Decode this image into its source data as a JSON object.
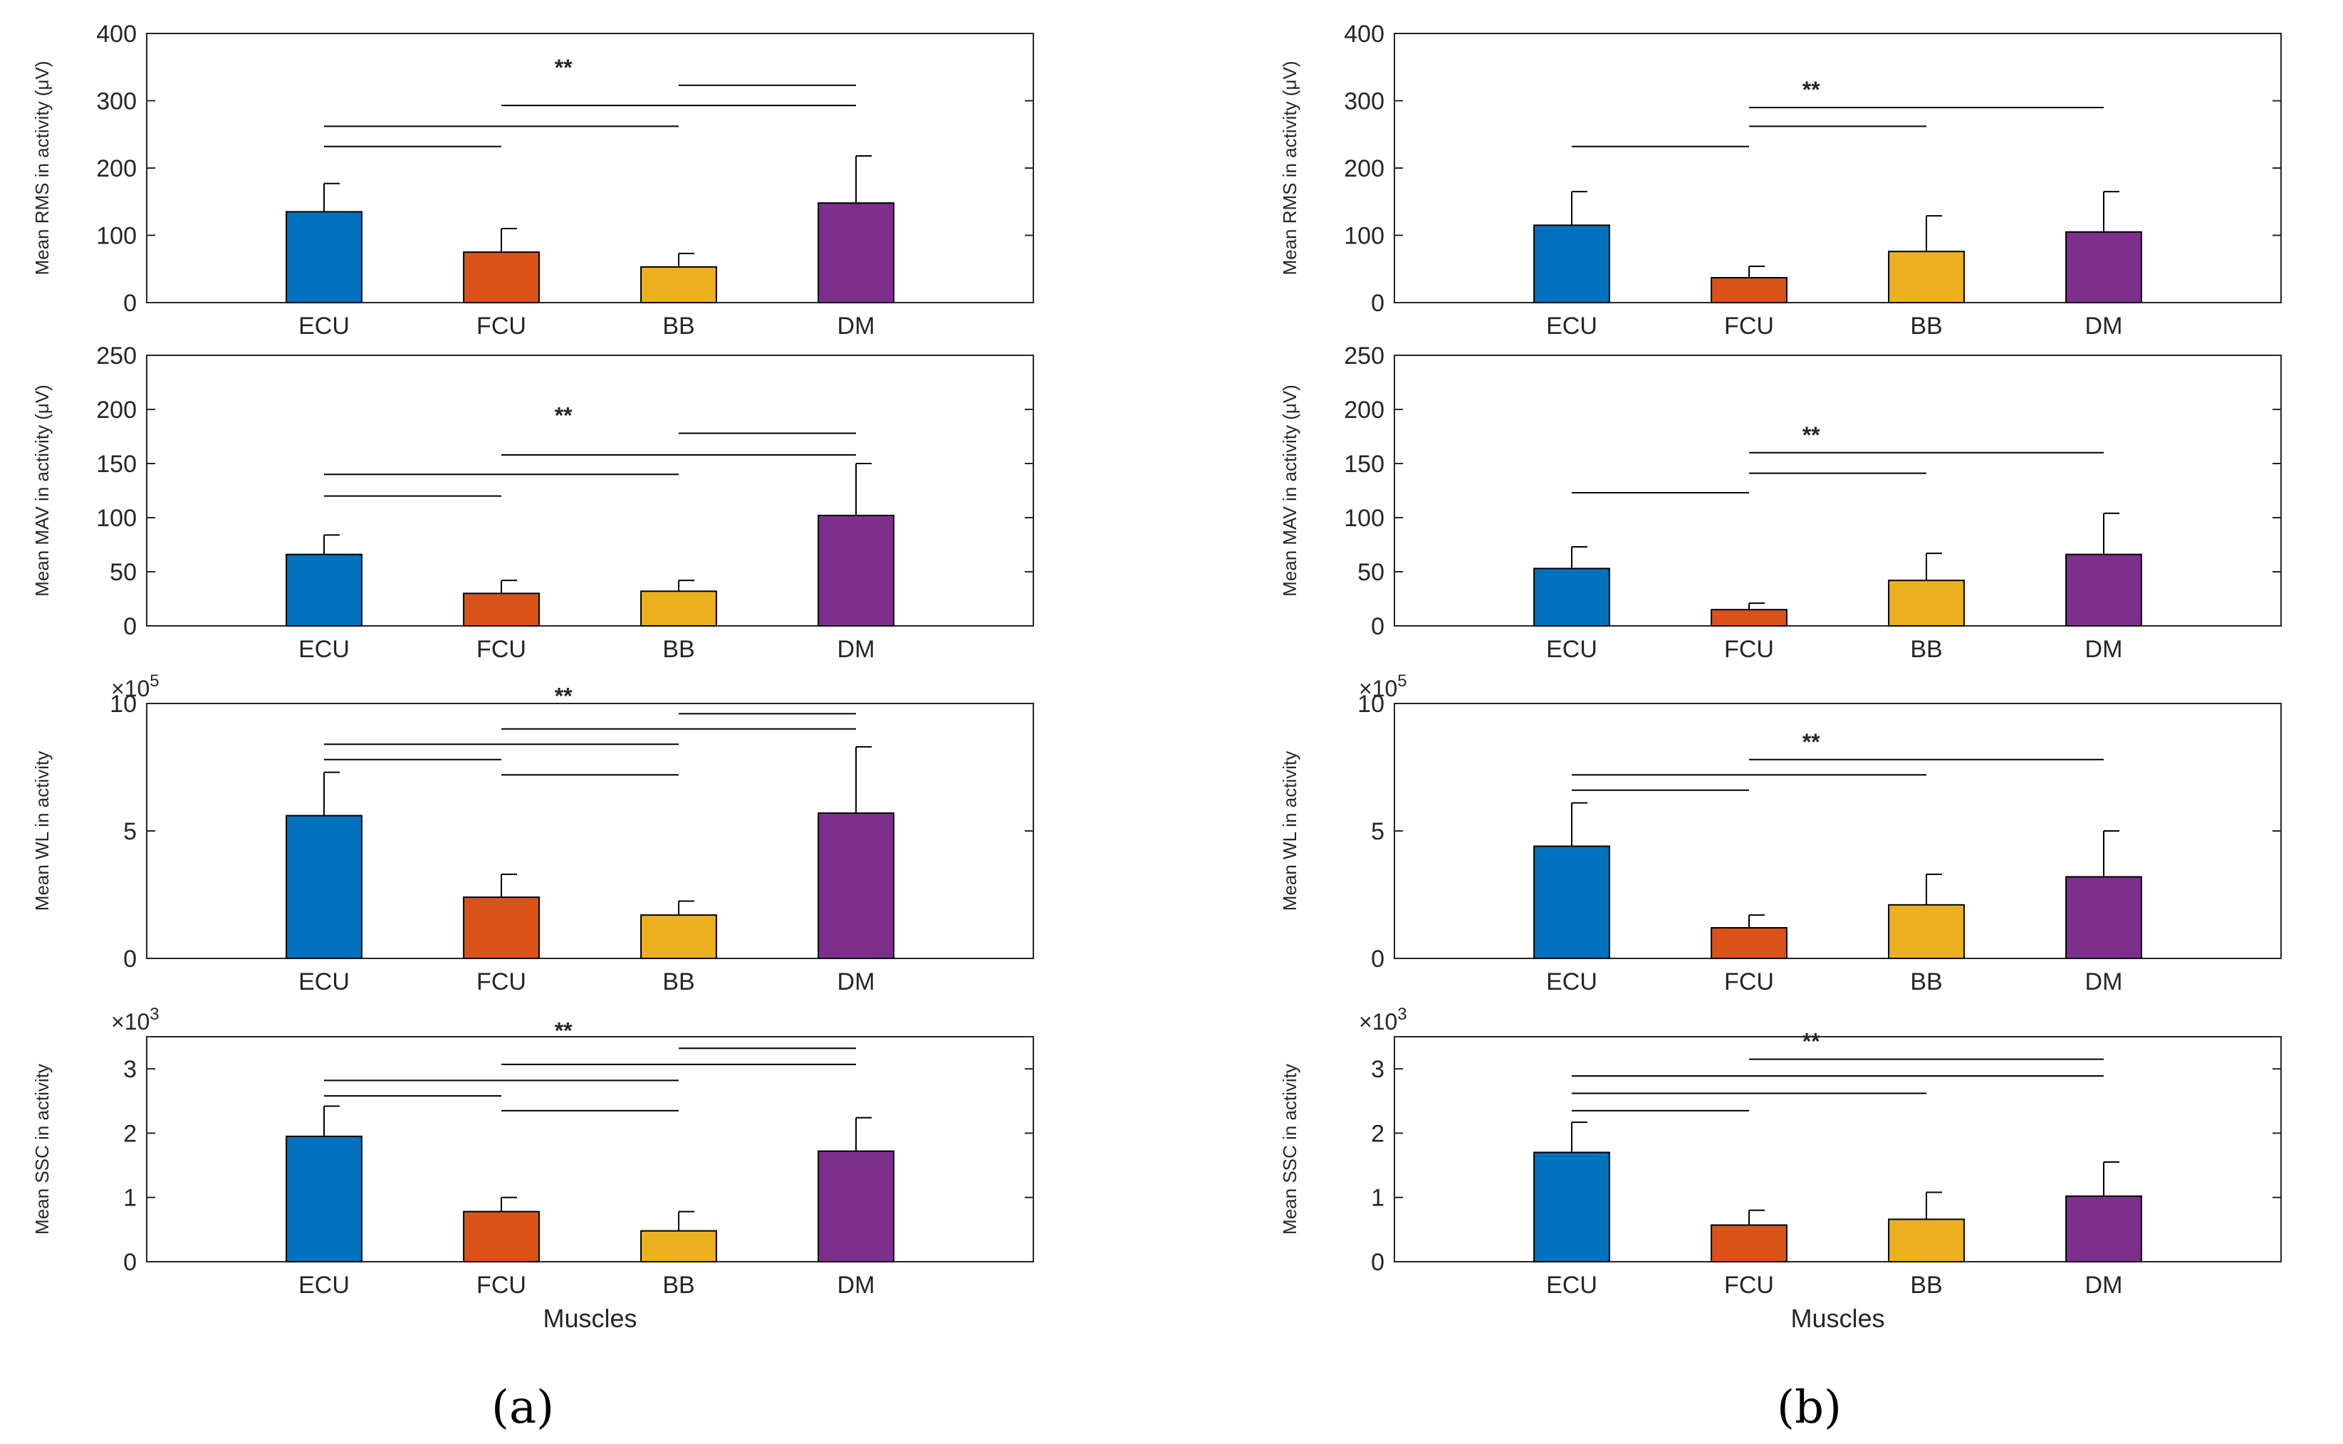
{
  "panel_labels": [
    "(a)",
    "(b)"
  ],
  "colors": {
    "ECU": "#0072BD",
    "FCU": "#D95319",
    "BB": "#EDB120",
    "DM": "#7E2F8E"
  },
  "chart_data": [
    {
      "type": "bar",
      "panel": "(a)",
      "title": "",
      "ylabel": "Mean RMS in activity (μV)",
      "xlabel": "",
      "categories": [
        "ECU",
        "FCU",
        "BB",
        "DM"
      ],
      "values": [
        135,
        75,
        53,
        148
      ],
      "errors": [
        42,
        35,
        20,
        70
      ],
      "ylim": [
        0,
        400
      ],
      "yticks": [
        0,
        100,
        200,
        300,
        400
      ],
      "ytick_labels": [
        "0",
        "100",
        "200",
        "300",
        "400"
      ],
      "exponent": "",
      "significance": "**",
      "brackets": [
        [
          0,
          1,
          232
        ],
        [
          0,
          2,
          262
        ],
        [
          1,
          3,
          293
        ],
        [
          2,
          3,
          323
        ]
      ]
    },
    {
      "type": "bar",
      "panel": "(a)",
      "title": "",
      "ylabel": "Mean MAV  in activity (μV)",
      "xlabel": "",
      "categories": [
        "ECU",
        "FCU",
        "BB",
        "DM"
      ],
      "values": [
        66,
        30,
        32,
        102
      ],
      "errors": [
        18,
        12,
        10,
        48
      ],
      "ylim": [
        0,
        250
      ],
      "yticks": [
        0,
        50,
        100,
        150,
        200,
        250
      ],
      "ytick_labels": [
        "0",
        "50",
        "100",
        "150",
        "200",
        "250"
      ],
      "exponent": "",
      "significance": "**",
      "brackets": [
        [
          0,
          1,
          120
        ],
        [
          0,
          2,
          140
        ],
        [
          1,
          3,
          158
        ],
        [
          2,
          3,
          178
        ]
      ]
    },
    {
      "type": "bar",
      "panel": "(a)",
      "title": "",
      "ylabel": "Mean WL in activity",
      "xlabel": "",
      "categories": [
        "ECU",
        "FCU",
        "BB",
        "DM"
      ],
      "values": [
        560000,
        240000,
        170000,
        570000
      ],
      "errors": [
        170000,
        90000,
        55000,
        260000
      ],
      "ylim": [
        0,
        1000000
      ],
      "yticks": [
        0,
        500000,
        1000000
      ],
      "ytick_labels": [
        "0",
        "5",
        "10"
      ],
      "exponent": "×10^5",
      "significance": "**",
      "brackets": [
        [
          1,
          2,
          720000
        ],
        [
          0,
          1,
          780000
        ],
        [
          0,
          2,
          840000
        ],
        [
          1,
          3,
          900000
        ],
        [
          2,
          3,
          960000
        ]
      ]
    },
    {
      "type": "bar",
      "panel": "(a)",
      "title": "",
      "ylabel": "Mean SSC in activity",
      "xlabel": "Muscles",
      "categories": [
        "ECU",
        "FCU",
        "BB",
        "DM"
      ],
      "values": [
        1950,
        780,
        480,
        1720
      ],
      "errors": [
        470,
        220,
        300,
        520
      ],
      "ylim": [
        0,
        3500
      ],
      "yticks": [
        0,
        1000,
        2000,
        3000
      ],
      "ytick_labels": [
        "0",
        "1",
        "2",
        "3"
      ],
      "exponent": "×10^3",
      "significance": "**",
      "brackets": [
        [
          1,
          2,
          2350
        ],
        [
          0,
          1,
          2580
        ],
        [
          0,
          2,
          2820
        ],
        [
          1,
          3,
          3070
        ],
        [
          2,
          3,
          3320
        ]
      ]
    },
    {
      "type": "bar",
      "panel": "(b)",
      "title": "",
      "ylabel": "Mean RMS in activity (μV)",
      "xlabel": "",
      "categories": [
        "ECU",
        "FCU",
        "BB",
        "DM"
      ],
      "values": [
        115,
        37,
        76,
        105
      ],
      "errors": [
        50,
        17,
        53,
        60
      ],
      "ylim": [
        0,
        400
      ],
      "yticks": [
        0,
        100,
        200,
        300,
        400
      ],
      "ytick_labels": [
        "0",
        "100",
        "200",
        "300",
        "400"
      ],
      "exponent": "",
      "significance": "**",
      "brackets": [
        [
          0,
          1,
          232
        ],
        [
          1,
          2,
          262
        ],
        [
          1,
          3,
          290
        ]
      ]
    },
    {
      "type": "bar",
      "panel": "(b)",
      "title": "",
      "ylabel": "Mean MAV  in activity (μV)",
      "xlabel": "",
      "categories": [
        "ECU",
        "FCU",
        "BB",
        "DM"
      ],
      "values": [
        53,
        15,
        42,
        66
      ],
      "errors": [
        20,
        6,
        25,
        38
      ],
      "ylim": [
        0,
        250
      ],
      "yticks": [
        0,
        50,
        100,
        150,
        200,
        250
      ],
      "ytick_labels": [
        "0",
        "50",
        "100",
        "150",
        "200",
        "250"
      ],
      "exponent": "",
      "significance": "**",
      "brackets": [
        [
          0,
          1,
          123
        ],
        [
          1,
          2,
          141
        ],
        [
          1,
          3,
          160
        ]
      ]
    },
    {
      "type": "bar",
      "panel": "(b)",
      "title": "",
      "ylabel": "Mean WL in activity",
      "xlabel": "",
      "categories": [
        "ECU",
        "FCU",
        "BB",
        "DM"
      ],
      "values": [
        440000,
        120000,
        210000,
        320000
      ],
      "errors": [
        170000,
        50000,
        120000,
        180000
      ],
      "ylim": [
        0,
        1000000
      ],
      "yticks": [
        0,
        500000,
        1000000
      ],
      "ytick_labels": [
        "0",
        "5",
        "10"
      ],
      "exponent": "×10^5",
      "significance": "**",
      "brackets": [
        [
          0,
          1,
          660000
        ],
        [
          0,
          2,
          720000
        ],
        [
          1,
          3,
          780000
        ]
      ]
    },
    {
      "type": "bar",
      "panel": "(b)",
      "title": "",
      "ylabel": "Mean SSC in activity",
      "xlabel": "Muscles",
      "categories": [
        "ECU",
        "FCU",
        "BB",
        "DM"
      ],
      "values": [
        1700,
        570,
        660,
        1020
      ],
      "errors": [
        470,
        230,
        420,
        530
      ],
      "ylim": [
        0,
        3500
      ],
      "yticks": [
        0,
        1000,
        2000,
        3000
      ],
      "ytick_labels": [
        "0",
        "1",
        "2",
        "3"
      ],
      "exponent": "×10^3",
      "significance": "**",
      "brackets": [
        [
          0,
          1,
          2350
        ],
        [
          0,
          2,
          2620
        ],
        [
          0,
          3,
          2890
        ],
        [
          1,
          3,
          3150
        ]
      ]
    }
  ]
}
